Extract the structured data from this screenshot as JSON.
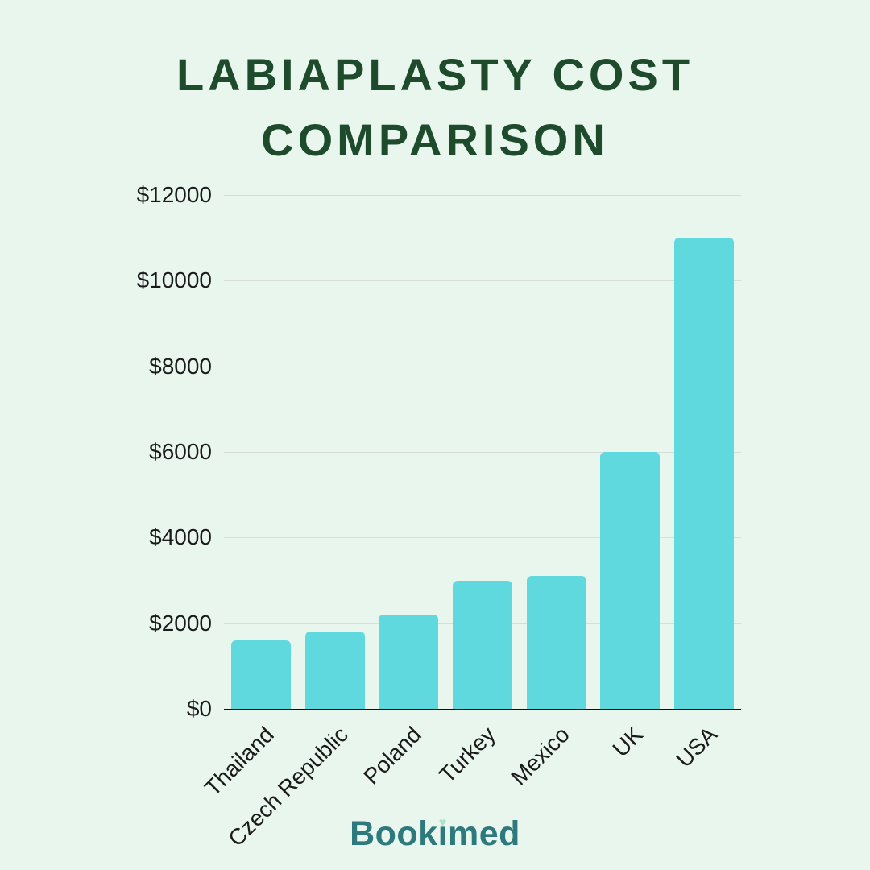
{
  "title": "LABIAPLASTY COST COMPARISON",
  "logo": {
    "full_name": "Bookimed",
    "part1": "Book",
    "i": "ı",
    "part2": "med",
    "heart": "♥"
  },
  "colors": {
    "background": "#e9f6ee",
    "bar": "#5fd8de",
    "title": "#1d4b2c",
    "logo": "#2e797d",
    "heart": "#abe4cb",
    "grid": "#d8ddda",
    "axis": "#111111",
    "tick_text": "#1a1a1a"
  },
  "chart_data": {
    "type": "bar",
    "title": "Labiaplasty Cost Comparison",
    "categories": [
      "Thailand",
      "Czech Republic",
      "Poland",
      "Turkey",
      "Mexico",
      "UK",
      "USA"
    ],
    "values": [
      1600,
      1800,
      2200,
      3000,
      3100,
      6000,
      11000
    ],
    "xlabel": "",
    "ylabel": "",
    "ylim": [
      0,
      12000
    ],
    "yticks": [
      {
        "value": 0,
        "label": "$0"
      },
      {
        "value": 2000,
        "label": "$2000"
      },
      {
        "value": 4000,
        "label": "$4000"
      },
      {
        "value": 6000,
        "label": "$6000"
      },
      {
        "value": 8000,
        "label": "$8000"
      },
      {
        "value": 10000,
        "label": "$10000"
      },
      {
        "value": 12000,
        "label": "$12000"
      }
    ],
    "grid": true,
    "legend": false,
    "bar_orientation": "vertical",
    "x_tick_rotation": 45
  }
}
